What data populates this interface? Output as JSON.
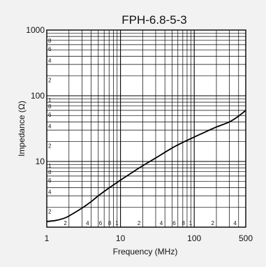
{
  "chart_data": {
    "type": "line",
    "title": "FPH-6.8-5-3",
    "xlabel": "Frequency (MHz)",
    "ylabel": "Impedance (Ω)",
    "x_scale": "log",
    "y_scale": "log",
    "xlim": [
      1,
      500
    ],
    "ylim": [
      1,
      1000
    ],
    "grid": true,
    "x_major_tick_labels": [
      {
        "value": 1,
        "label": "1"
      },
      {
        "value": 10,
        "label": "10"
      },
      {
        "value": 100,
        "label": "100"
      },
      {
        "value": 500,
        "label": "500"
      }
    ],
    "y_major_tick_labels": [
      {
        "value": 10,
        "label": "10"
      },
      {
        "value": 100,
        "label": "100"
      },
      {
        "value": 1000,
        "label": "1000"
      }
    ],
    "x_minor_tick_labels": [
      {
        "value": 2,
        "label": "2"
      },
      {
        "value": 4,
        "label": "4"
      },
      {
        "value": 6,
        "label": "6"
      },
      {
        "value": 8,
        "label": "8"
      },
      {
        "value": 10,
        "label": "1"
      },
      {
        "value": 20,
        "label": "2"
      },
      {
        "value": 40,
        "label": "4"
      },
      {
        "value": 60,
        "label": "6"
      },
      {
        "value": 80,
        "label": "8"
      },
      {
        "value": 100,
        "label": "1"
      },
      {
        "value": 200,
        "label": "2"
      },
      {
        "value": 400,
        "label": "4"
      }
    ],
    "y_minor_tick_labels": [
      {
        "value": 2,
        "label": "2"
      },
      {
        "value": 4,
        "label": "4"
      },
      {
        "value": 6,
        "label": "6"
      },
      {
        "value": 8,
        "label": "8"
      },
      {
        "value": 10,
        "label": "1"
      },
      {
        "value": 20,
        "label": "2"
      },
      {
        "value": 40,
        "label": "4"
      },
      {
        "value": 60,
        "label": "6"
      },
      {
        "value": 80,
        "label": "8"
      },
      {
        "value": 100,
        "label": "1"
      },
      {
        "value": 200,
        "label": "2"
      },
      {
        "value": 400,
        "label": "4"
      },
      {
        "value": 600,
        "label": "6"
      },
      {
        "value": 800,
        "label": "8"
      }
    ],
    "series": [
      {
        "color": "#000000",
        "x": [
          1,
          1.3,
          1.7,
          2,
          3,
          4,
          5,
          7,
          10,
          15,
          20,
          30,
          50,
          70,
          100,
          150,
          200,
          300,
          400,
          500
        ],
        "y": [
          1.22,
          1.26,
          1.36,
          1.48,
          1.95,
          2.45,
          3.0,
          3.95,
          5.2,
          7.0,
          8.6,
          11.3,
          16.0,
          19.5,
          23.5,
          29.0,
          33.5,
          40.0,
          49.0,
          60.0
        ]
      }
    ]
  }
}
